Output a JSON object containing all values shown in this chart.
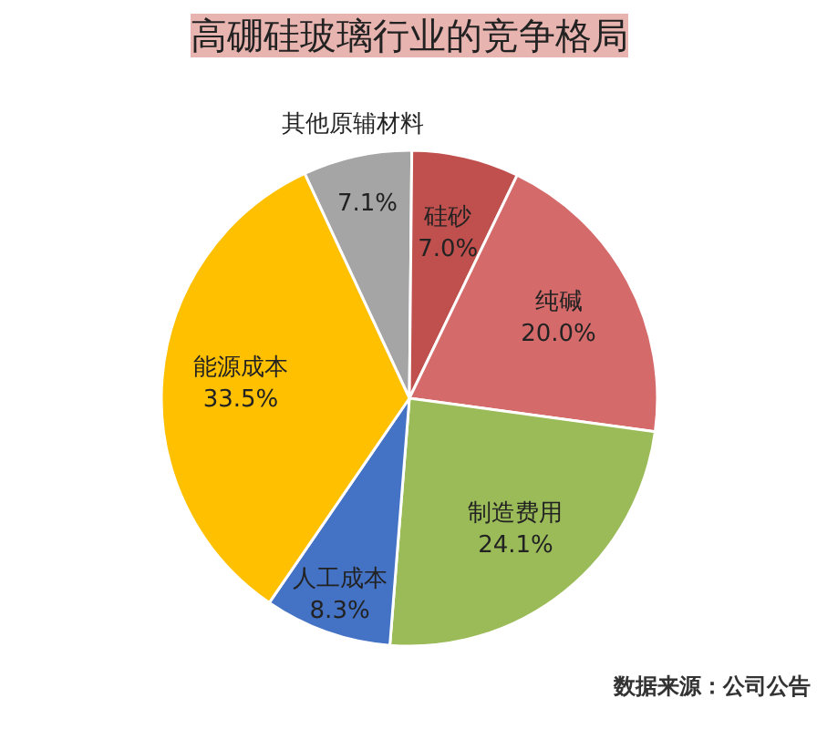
{
  "chart_data": {
    "type": "pie",
    "title": "高硼硅玻璃行业的竞争格局",
    "categories": [
      "其他原辅材料",
      "硅砂",
      "纯碱",
      "制造费用",
      "人工成本",
      "能源成本"
    ],
    "values": [
      7.1,
      7.0,
      20.0,
      24.1,
      8.3,
      33.5
    ],
    "colors": [
      "#a5a5a5",
      "#c0504d",
      "#d46a6a",
      "#9bbb59",
      "#4472c4",
      "#ffc000"
    ],
    "value_labels": [
      "7.1%",
      "7.0%",
      "20.0%",
      "24.1%",
      "8.3%",
      "33.5%"
    ],
    "annotations": [
      "数据来源：公司公告"
    ]
  }
}
